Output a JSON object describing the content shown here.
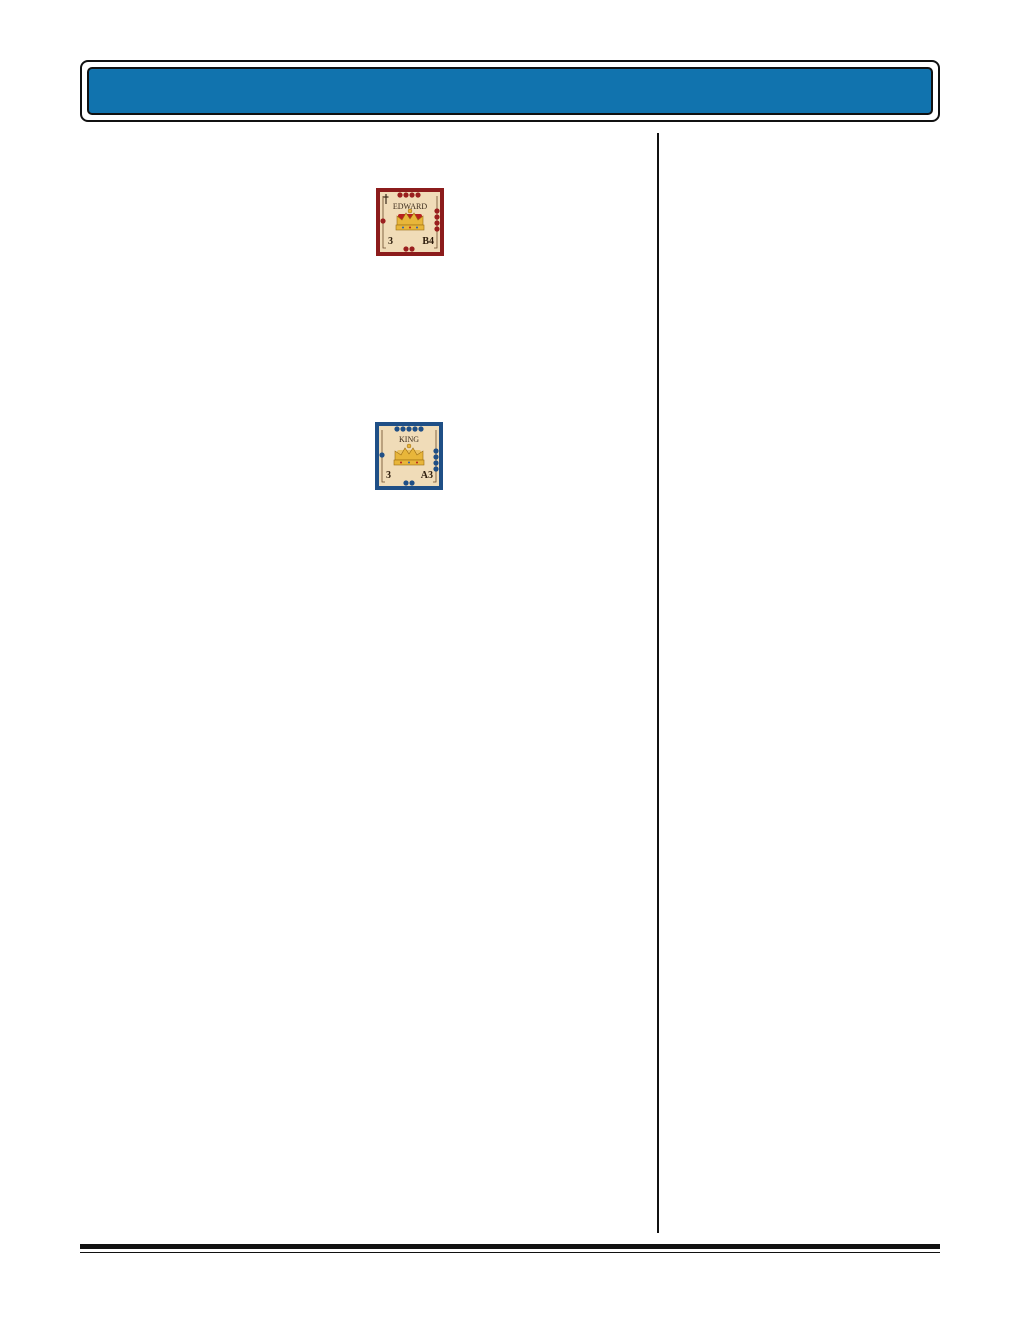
{
  "blocks": [
    {
      "name": "EDWARD",
      "strength": "3",
      "combat": "B4",
      "border_color": "#8c1c1c",
      "pip_color": "#9a1e1e",
      "has_cross": true
    },
    {
      "name": "KING",
      "strength": "3",
      "combat": "A3",
      "border_color": "#1f4f86",
      "pip_color": "#1f4f86",
      "has_cross": false
    }
  ],
  "colors": {
    "header_blue": "#1173ae",
    "parchment": "#f0dcb8",
    "crown_gold": "#e8b63a"
  }
}
